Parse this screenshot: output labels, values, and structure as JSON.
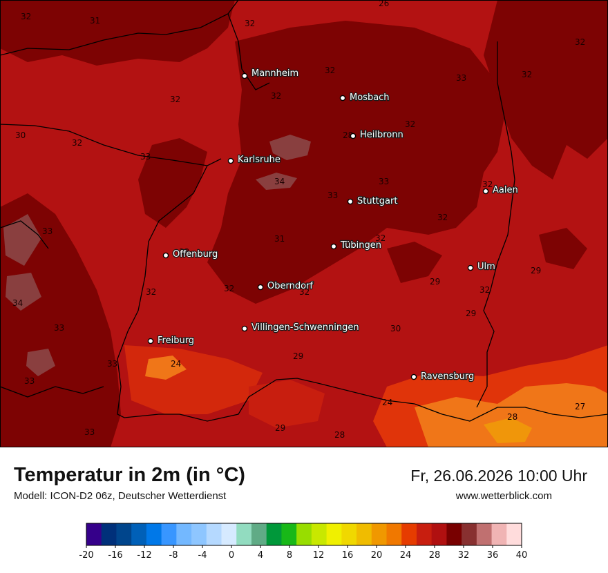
{
  "map": {
    "cities": [
      {
        "name": "Mannheim"
      },
      {
        "name": "Mosbach"
      },
      {
        "name": "Heilbronn"
      },
      {
        "name": "Karlsruhe"
      },
      {
        "name": "Aalen"
      },
      {
        "name": "Stuttgart"
      },
      {
        "name": "Tübingen"
      },
      {
        "name": "Offenburg"
      },
      {
        "name": "Ulm"
      },
      {
        "name": "Oberndorf"
      },
      {
        "name": "Villingen-Schwenningen"
      },
      {
        "name": "Freiburg"
      },
      {
        "name": "Ravensburg"
      }
    ],
    "isotherm_labels": [
      "26",
      "32",
      "31",
      "32",
      "32",
      "32",
      "33",
      "32",
      "32",
      "32",
      "32",
      "30",
      "32",
      "33",
      "28",
      "32",
      "33",
      "34",
      "33",
      "33",
      "32",
      "33",
      "32",
      "31",
      "32",
      "34",
      "32",
      "32",
      "32",
      "29",
      "29",
      "33",
      "30",
      "29",
      "29",
      "33",
      "24",
      "33",
      "24",
      "28",
      "27",
      "33",
      "29",
      "28"
    ]
  },
  "footer": {
    "title": "Temperatur in 2m (in °C)",
    "model": "Modell: ICON-D2 06z, Deutscher Wetterdienst",
    "datetime": "Fr, 26.06.2026 10:00 Uhr",
    "website": "www.wetterblick.com"
  },
  "legend": {
    "min": -20,
    "max": 40,
    "ticks": [
      "-20",
      "-16",
      "-12",
      "-8",
      "-4",
      "0",
      "4",
      "8",
      "12",
      "16",
      "20",
      "24",
      "28",
      "32",
      "36",
      "40"
    ],
    "colors": [
      "#35008a",
      "#00307a",
      "#00458c",
      "#0060b8",
      "#0078e8",
      "#3896ff",
      "#73b8ff",
      "#8ec6ff",
      "#b5d9ff",
      "#d6eaff",
      "#92dcc0",
      "#60ab86",
      "#00983a",
      "#18b818",
      "#98dd00",
      "#c8e800",
      "#f0f000",
      "#f0d800",
      "#f0bc00",
      "#f09800",
      "#f07800",
      "#e63c00",
      "#c81e0f",
      "#b01010",
      "#780000",
      "#883030",
      "#c07070",
      "#f0b4b4",
      "#ffdcdc"
    ]
  },
  "style": {
    "ocean_base": "#b31212",
    "very_hot": "#7d0303",
    "hot": "#a10c0c",
    "warm_orange": "#e0340a",
    "light_orange": "#f07618",
    "gray_peak": "#8c4a4a",
    "border_color": "#000000"
  }
}
